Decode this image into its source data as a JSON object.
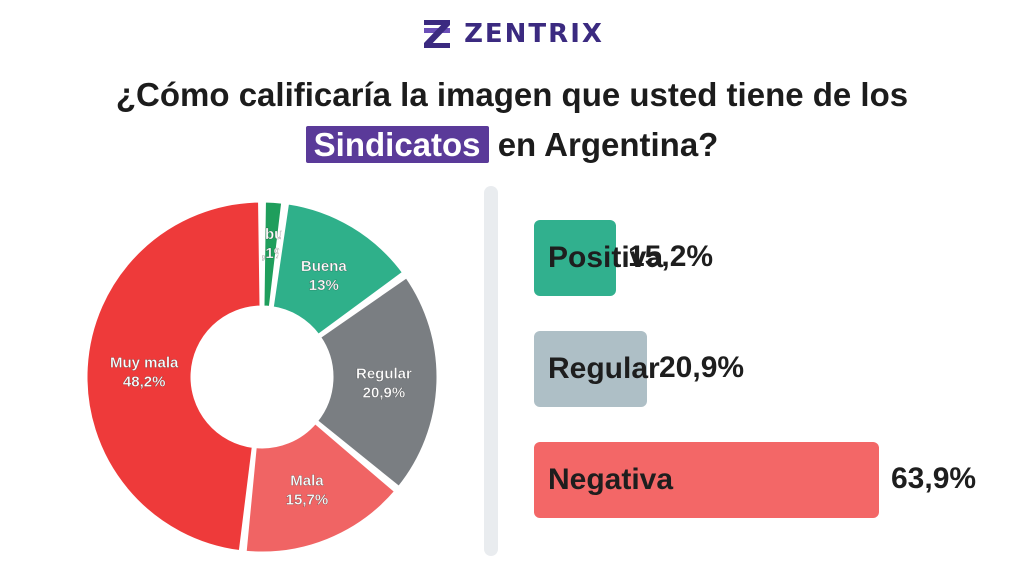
{
  "brand": {
    "name": "ZENTRIX",
    "icon": "zentrix-logo-icon",
    "color": "#3b2a80"
  },
  "title": {
    "line1": "¿Cómo calificaría la imagen que usted tiene de los",
    "highlight": "Sindicatos",
    "line2_rest": "en Argentina?",
    "highlight_color": "#5a3a99"
  },
  "chart_data": [
    {
      "type": "pie",
      "variant": "donut",
      "categories": [
        "Muy buena",
        "Buena",
        "Regular",
        "Mala",
        "Muy mala"
      ],
      "values": [
        2.1,
        13,
        20.9,
        15.7,
        48.2
      ],
      "value_labels": [
        "2,1%",
        "13%",
        "20,9%",
        "15,7%",
        "48,2%"
      ],
      "colors": [
        "#1f9e5c",
        "#2fb08a",
        "#7a7e82",
        "#f06464",
        "#ee3a3a"
      ]
    },
    {
      "type": "bar",
      "orientation": "horizontal",
      "categories": [
        "Positiva",
        "Regular",
        "Negativa"
      ],
      "values": [
        15.2,
        20.9,
        63.9
      ],
      "value_labels": [
        "15,2%",
        "20,9%",
        "63,9%"
      ],
      "colors": [
        "#31b08e",
        "#aebfc6",
        "#f36767"
      ]
    }
  ]
}
